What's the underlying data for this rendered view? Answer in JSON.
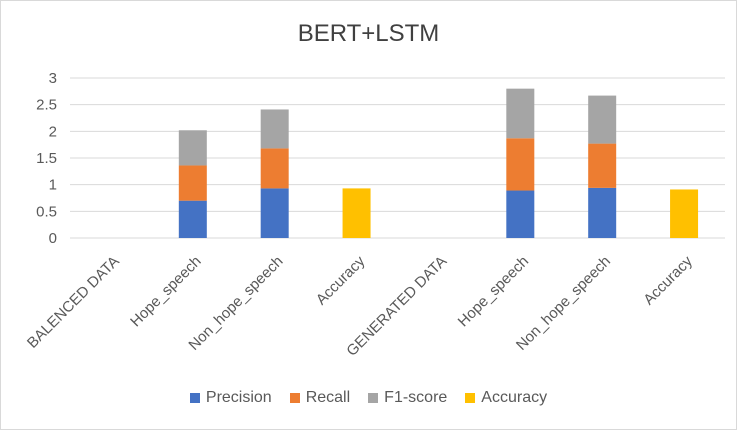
{
  "chart_data": {
    "type": "bar",
    "stacked": true,
    "title": "BERT+LSTM",
    "categories": [
      "BALENCED DATA",
      "Hope_speech",
      "Non_hope_speech",
      "Accuracy",
      "GENERATED DATA",
      "Hope_speech",
      "Non_hope_speech",
      "Accuracy"
    ],
    "series": [
      {
        "name": "Precision",
        "color": "#4472c4",
        "values": [
          null,
          0.7,
          0.93,
          null,
          null,
          0.89,
          0.94,
          null
        ]
      },
      {
        "name": "Recall",
        "color": "#ed7d31",
        "values": [
          null,
          0.66,
          0.75,
          null,
          null,
          0.98,
          0.83,
          null
        ]
      },
      {
        "name": "F1-score",
        "color": "#a5a5a5",
        "values": [
          null,
          0.66,
          0.73,
          null,
          null,
          0.93,
          0.9,
          null
        ]
      },
      {
        "name": "Accuracy",
        "color": "#ffc000",
        "values": [
          null,
          null,
          null,
          0.93,
          null,
          null,
          null,
          0.91
        ]
      }
    ],
    "ylim": [
      0,
      3
    ],
    "yticks": [
      "0",
      "0.5",
      "1",
      "1.5",
      "2",
      "2.5",
      "3"
    ],
    "grid": true,
    "legend_position": "bottom"
  }
}
